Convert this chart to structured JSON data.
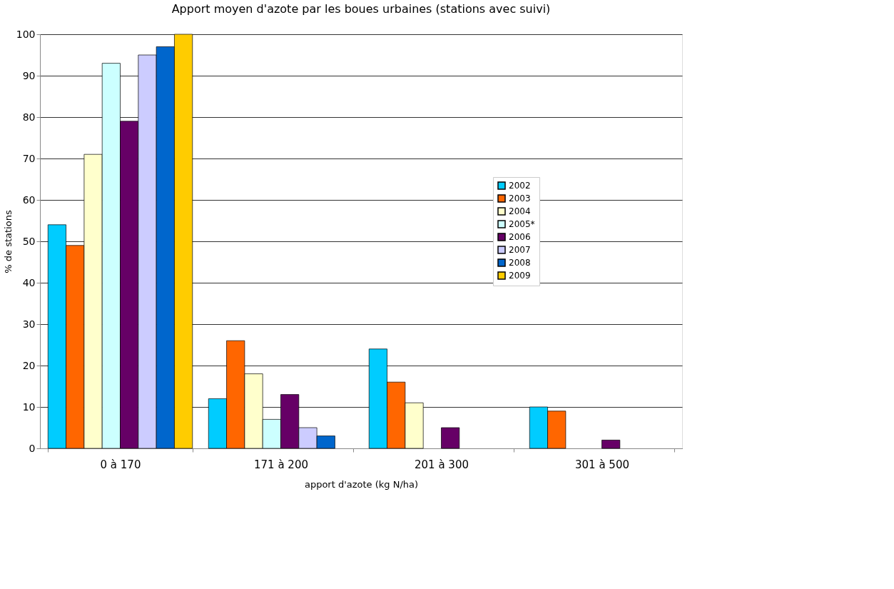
{
  "chart_data": {
    "type": "bar",
    "title": "Apport moyen d'azote par les boues urbaines (stations avec suivi)",
    "xlabel": "apport d'azote (kg N/ha)",
    "ylabel": "% de stations",
    "categories": [
      "0 à 170",
      "171 à 200",
      "201 à 300",
      "301 à 500"
    ],
    "series": [
      {
        "name": "2002",
        "color": "#00ccff",
        "values": [
          54,
          12,
          24,
          10
        ]
      },
      {
        "name": "2003",
        "color": "#ff6600",
        "values": [
          49,
          26,
          16,
          9
        ]
      },
      {
        "name": "2004",
        "color": "#ffffcc",
        "values": [
          71,
          18,
          11,
          0
        ]
      },
      {
        "name": "2005*",
        "color": "#ccffff",
        "values": [
          93,
          7,
          0,
          0
        ]
      },
      {
        "name": "2006",
        "color": "#660066",
        "values": [
          79,
          13,
          5,
          2
        ]
      },
      {
        "name": "2007",
        "color": "#ccccff",
        "values": [
          95,
          5,
          null,
          null
        ]
      },
      {
        "name": "2008",
        "color": "#0066cc",
        "values": [
          97,
          3,
          null,
          null
        ]
      },
      {
        "name": "2009",
        "color": "#ffcc00",
        "values": [
          100,
          null,
          null,
          null
        ]
      }
    ],
    "ylim": [
      0,
      100
    ],
    "yticks": [
      0,
      10,
      20,
      30,
      40,
      50,
      60,
      70,
      80,
      90,
      100
    ],
    "grid": "y",
    "legend": "top right"
  }
}
